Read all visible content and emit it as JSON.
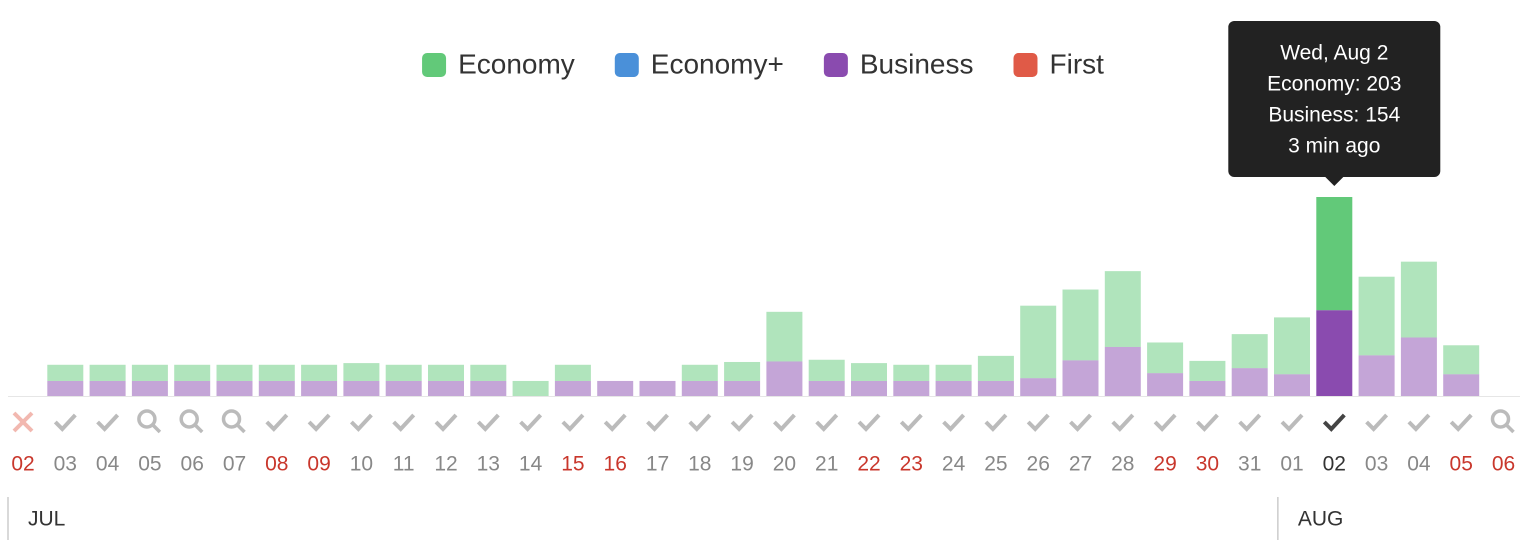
{
  "chart_data": {
    "type": "stacked-bar",
    "categories": [
      "02",
      "03",
      "04",
      "05",
      "06",
      "07",
      "08",
      "09",
      "10",
      "11",
      "12",
      "13",
      "14",
      "15",
      "16",
      "17",
      "18",
      "19",
      "20",
      "21",
      "22",
      "23",
      "24",
      "25",
      "26",
      "27",
      "28",
      "29",
      "30",
      "31",
      "01",
      "02",
      "03",
      "04",
      "05",
      "06"
    ],
    "category_colors": [
      "#c9372c",
      "#888888",
      "#888888",
      "#888888",
      "#888888",
      "#888888",
      "#c9372c",
      "#c9372c",
      "#888888",
      "#888888",
      "#888888",
      "#888888",
      "#888888",
      "#c9372c",
      "#c9372c",
      "#888888",
      "#888888",
      "#888888",
      "#888888",
      "#888888",
      "#c9372c",
      "#c9372c",
      "#888888",
      "#888888",
      "#888888",
      "#888888",
      "#888888",
      "#c9372c",
      "#c9372c",
      "#888888",
      "#888888",
      "#333333",
      "#888888",
      "#888888",
      "#c9372c",
      "#c9372c"
    ],
    "day_status": [
      "x",
      "check",
      "check",
      "search",
      "search",
      "search",
      "check",
      "check",
      "check",
      "check",
      "check",
      "check",
      "check",
      "check",
      "check",
      "check",
      "check",
      "check",
      "check",
      "check",
      "check",
      "check",
      "check",
      "check",
      "check",
      "check",
      "check",
      "check",
      "check",
      "check",
      "check",
      "check",
      "check",
      "check",
      "check",
      "search"
    ],
    "months": [
      "JUL",
      "AUG"
    ],
    "highlight": 31,
    "series": [
      {
        "name": "Economy",
        "color": "#62c979",
        "values": [
          null,
          29,
          29,
          29,
          29,
          29,
          29,
          29,
          32,
          29,
          29,
          29,
          27,
          29,
          null,
          null,
          29,
          34,
          89,
          38,
          32,
          29,
          29,
          45,
          130,
          127,
          136,
          55,
          36,
          61,
          102,
          203,
          141,
          136,
          52,
          null
        ]
      },
      {
        "name": "Economy+",
        "color": "#4a90d9",
        "values": [
          null,
          null,
          null,
          null,
          null,
          null,
          null,
          null,
          null,
          null,
          null,
          null,
          null,
          null,
          null,
          null,
          null,
          null,
          null,
          null,
          null,
          null,
          null,
          null,
          null,
          null,
          null,
          null,
          null,
          null,
          null,
          null,
          null,
          null,
          null,
          null
        ]
      },
      {
        "name": "Business",
        "color": "#8a4baf",
        "values": [
          null,
          27,
          27,
          27,
          27,
          27,
          27,
          27,
          27,
          27,
          27,
          27,
          null,
          27,
          27,
          27,
          27,
          27,
          62,
          27,
          27,
          27,
          27,
          27,
          32,
          64,
          88,
          41,
          27,
          50,
          39,
          154,
          73,
          105,
          39,
          null
        ]
      },
      {
        "name": "First",
        "color": "#e05a47",
        "values": [
          null,
          null,
          null,
          null,
          null,
          null,
          null,
          null,
          null,
          null,
          null,
          null,
          null,
          null,
          null,
          null,
          null,
          null,
          null,
          null,
          null,
          null,
          null,
          null,
          null,
          null,
          null,
          null,
          null,
          null,
          null,
          null,
          null,
          null,
          null,
          null
        ]
      }
    ],
    "tooltip": {
      "title": "Wed, Aug 2",
      "lines": [
        "Economy: 203",
        "Business: 154"
      ],
      "footer": "3 min ago"
    }
  }
}
